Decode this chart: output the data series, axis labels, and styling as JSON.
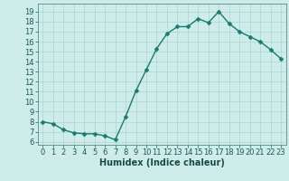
{
  "x": [
    0,
    1,
    2,
    3,
    4,
    5,
    6,
    7,
    8,
    9,
    10,
    11,
    12,
    13,
    14,
    15,
    16,
    17,
    18,
    19,
    20,
    21,
    22,
    23
  ],
  "y": [
    8.0,
    7.8,
    7.2,
    6.9,
    6.8,
    6.8,
    6.6,
    6.2,
    8.5,
    11.1,
    13.2,
    15.3,
    16.8,
    17.5,
    17.5,
    18.3,
    17.9,
    19.0,
    17.8,
    17.0,
    16.5,
    16.0,
    15.2,
    14.3
  ],
  "xlabel": "Humidex (Indice chaleur)",
  "xticks": [
    0,
    1,
    2,
    3,
    4,
    5,
    6,
    7,
    8,
    9,
    10,
    11,
    12,
    13,
    14,
    15,
    16,
    17,
    18,
    19,
    20,
    21,
    22,
    23
  ],
  "yticks": [
    6,
    7,
    8,
    9,
    10,
    11,
    12,
    13,
    14,
    15,
    16,
    17,
    18,
    19
  ],
  "ylim": [
    5.7,
    19.8
  ],
  "xlim": [
    -0.5,
    23.5
  ],
  "line_color": "#1a7a6e",
  "marker_color": "#1a7a6e",
  "bg_color": "#cdecea",
  "grid_color": "#a8d5d1",
  "axis_color": "#5a8a85",
  "tick_label_color": "#1a5a55",
  "xlabel_color": "#1a4a45",
  "xlabel_fontsize": 7,
  "tick_fontsize": 6,
  "line_width": 1.0,
  "marker_size": 2.5
}
